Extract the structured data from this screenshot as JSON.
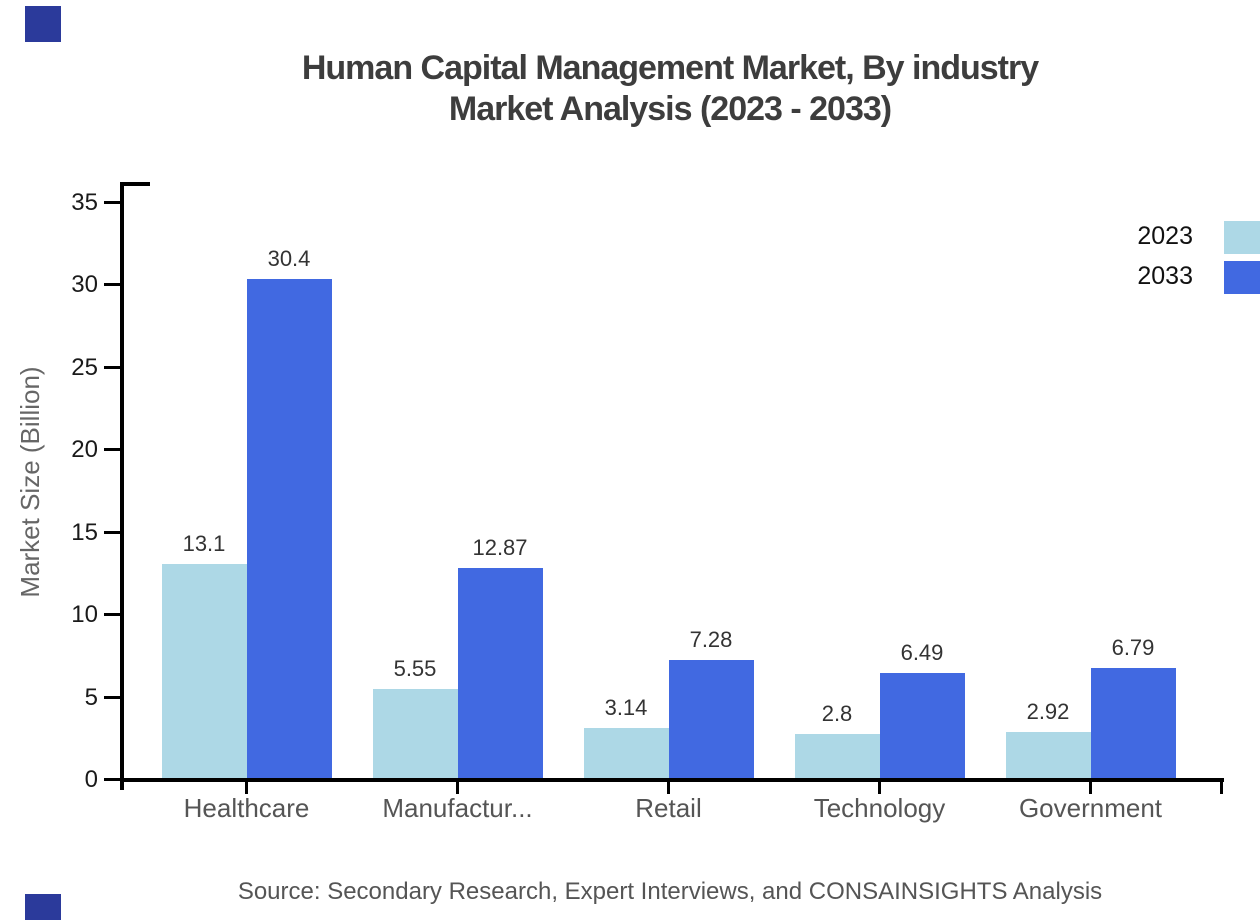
{
  "brand": {
    "accent_color": "#2b3a9b"
  },
  "header": {
    "title_line1": "Human Capital Management Market, By industry",
    "title_line2": "Market Analysis (2023 - 2033)"
  },
  "chart_data": {
    "type": "bar",
    "categories": [
      "Healthcare",
      "Manufactur...",
      "Retail",
      "Technology",
      "Government"
    ],
    "series": [
      {
        "name": "2023",
        "color": "#ADD8E6",
        "values": [
          13.1,
          5.55,
          3.14,
          2.8,
          2.92
        ],
        "labels": [
          "13.1",
          "5.55",
          "3.14",
          "2.8",
          "2.92"
        ]
      },
      {
        "name": "2033",
        "color": "#4169E1",
        "values": [
          30.4,
          12.87,
          7.28,
          6.49,
          6.79
        ],
        "labels": [
          "30.4",
          "12.87",
          "7.28",
          "6.49",
          "6.79"
        ]
      }
    ],
    "title": "Human Capital Management Market, By industry Market Analysis (2023 - 2033)",
    "xlabel": "",
    "ylabel": "Market Size (Billion)",
    "ylim": [
      0,
      35
    ],
    "yticks": [
      0,
      5,
      10,
      15,
      20,
      25,
      30,
      35
    ],
    "grid": false,
    "legend_position": "top-right"
  },
  "footer": {
    "source": "Source: Secondary Research, Expert Interviews, and CONSAINSIGHTS Analysis"
  }
}
